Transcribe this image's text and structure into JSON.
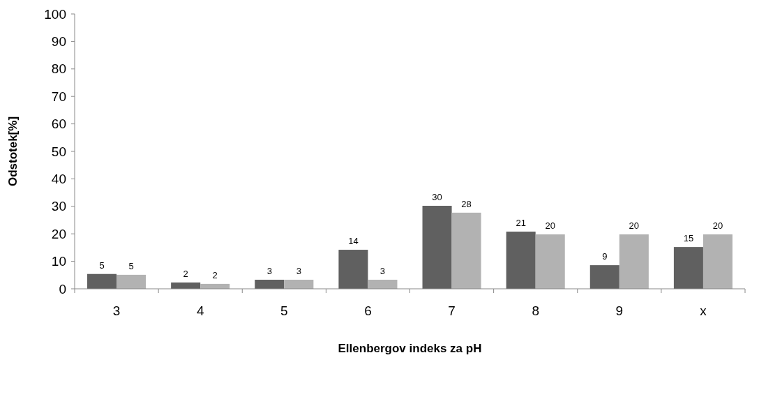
{
  "chart_data": {
    "type": "bar",
    "xlabel": "Ellenbergov indeks za pH",
    "ylabel": "Odstotek[%]",
    "categories": [
      "3",
      "4",
      "5",
      "6",
      "7",
      "8",
      "9",
      "x"
    ],
    "series": [
      {
        "color": "#606060",
        "values": [
          5.4,
          2.3,
          3.3,
          14.2,
          30.2,
          20.8,
          8.6,
          15.2
        ],
        "value_labels": [
          "5",
          "2",
          "3",
          "14",
          "30",
          "21",
          "9",
          "15"
        ]
      },
      {
        "color": "#b2b2b2",
        "values": [
          5.1,
          1.8,
          3.3,
          3.3,
          27.7,
          19.8,
          19.8,
          19.8
        ],
        "value_labels": [
          "5",
          "2",
          "3",
          "3",
          "28",
          "20",
          "20",
          "20"
        ]
      }
    ],
    "ylim": [
      0,
      100
    ],
    "yticks": [
      0,
      10,
      20,
      30,
      40,
      50,
      60,
      70,
      80,
      90,
      100
    ]
  }
}
